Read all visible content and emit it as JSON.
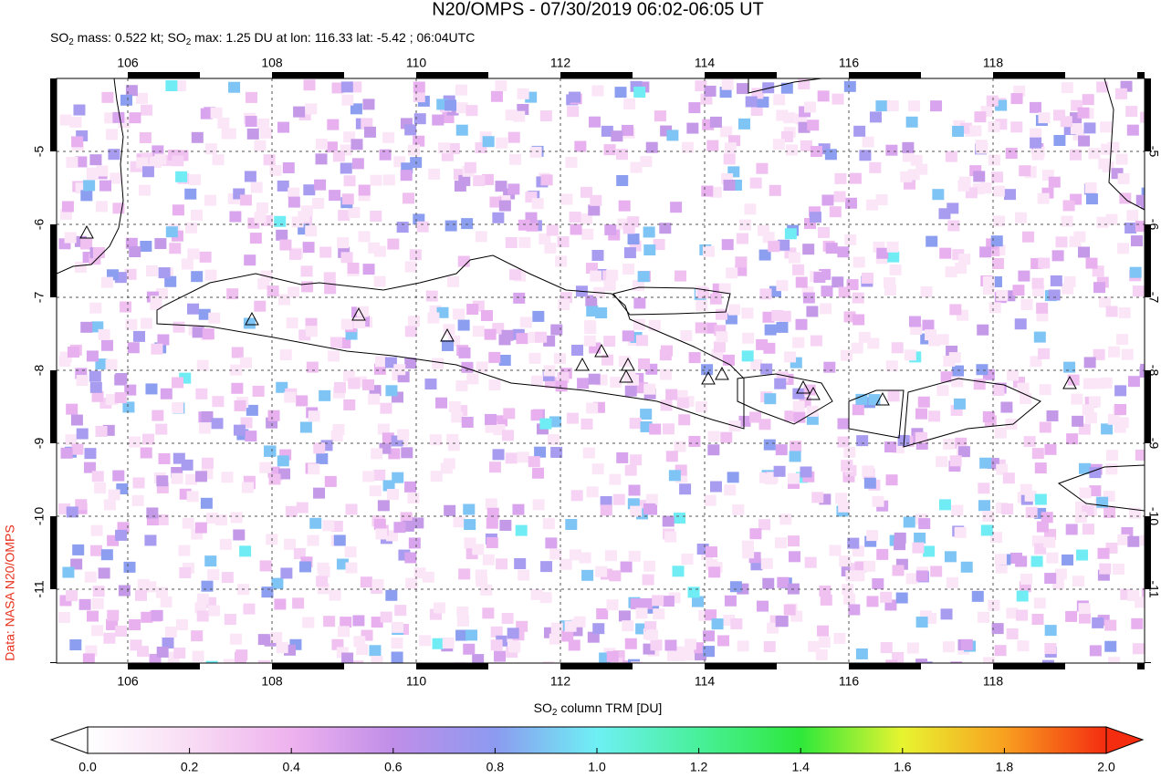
{
  "header": {
    "title": "N20/OMPS - 07/30/2019 06:02-06:05 UT",
    "subtitle": [
      "SO",
      "2",
      " mass: 0.522 kt; SO",
      "2",
      " max: 1.25 DU at lon: 116.33 lat: -5.42 ; 06:04UTC"
    ]
  },
  "map": {
    "lon_ticks": [
      106,
      108,
      110,
      112,
      114,
      116,
      118
    ],
    "lat_ticks": [
      -5,
      -6,
      -7,
      -8,
      -9,
      -10,
      -11
    ]
  },
  "colorbar": {
    "label": [
      "SO",
      "2",
      " column TRM [DU]"
    ],
    "ticks": [
      {
        "value": 0,
        "label": "0.0"
      },
      {
        "value": 0.2,
        "label": "0.2"
      },
      {
        "value": 0.4,
        "label": "0.4"
      },
      {
        "value": 0.6,
        "label": "0.6"
      },
      {
        "value": 0.8,
        "label": "0.8"
      },
      {
        "value": 1,
        "label": "1.0"
      },
      {
        "value": 1.2,
        "label": "1.2"
      },
      {
        "value": 1.4,
        "label": "1.4"
      },
      {
        "value": 1.6,
        "label": "1.6"
      },
      {
        "value": 1.8,
        "label": "1.8"
      },
      {
        "value": 2,
        "label": "2.0"
      }
    ]
  },
  "credit": "Data: NASA N20/OMPS"
}
